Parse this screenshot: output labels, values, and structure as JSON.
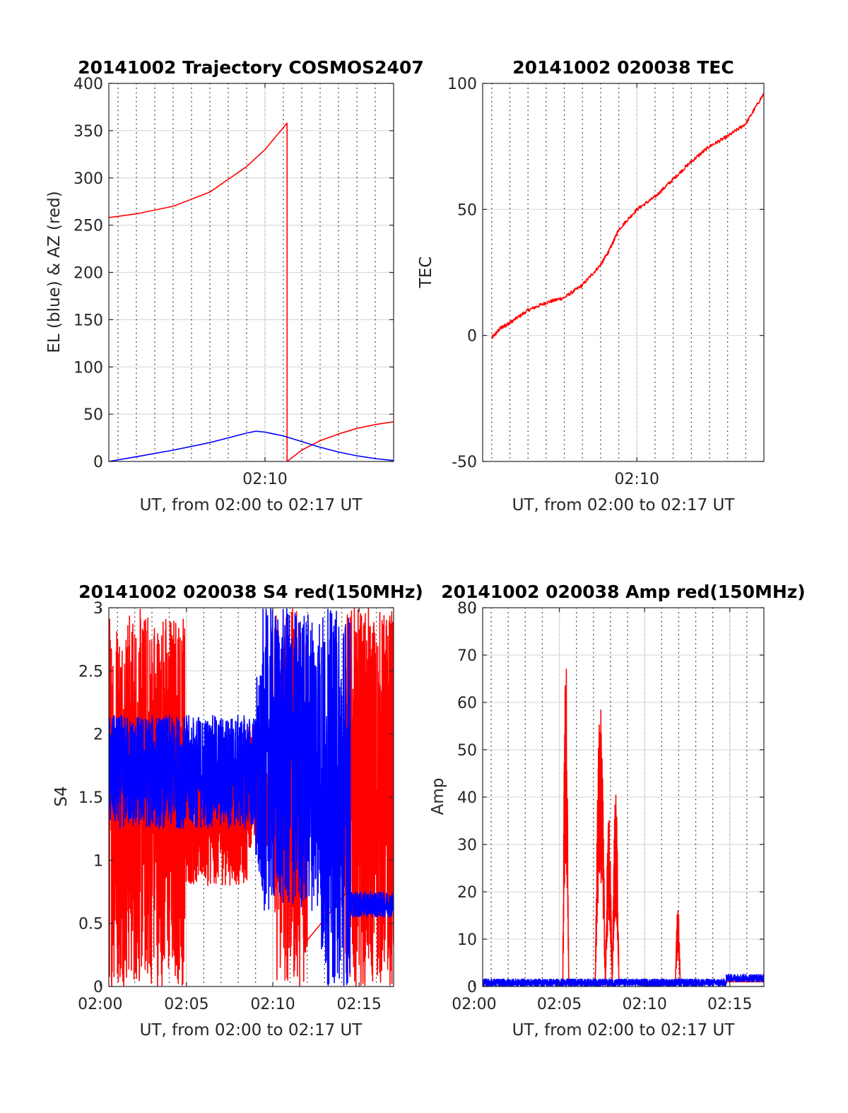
{
  "figure": {
    "colors": {
      "red": "#ff0000",
      "blue": "#0000ff",
      "axis": "#262626",
      "grid": "#dcdcdc",
      "minor_grid": "#000000"
    }
  },
  "chart_data": [
    {
      "id": "trajectory",
      "type": "line",
      "title": "20141002 Trajectory COSMOS2407",
      "xlabel": "UT, from 02:00 to 02:17 UT",
      "ylabel": "EL (blue) & AZ (red)",
      "xlim": [
        1.5,
        17.0
      ],
      "ylim": [
        0,
        400
      ],
      "xticks": [
        {
          "x": 10,
          "label": "02:10"
        }
      ],
      "yticks": [
        0,
        50,
        100,
        150,
        200,
        250,
        300,
        350,
        400
      ],
      "minor_grid_step_min": 1,
      "series": [
        {
          "color": "#ff0000",
          "x": [
            1.5,
            3,
            5,
            7,
            9,
            10,
            11.2,
            11.2,
            11.2,
            12,
            13,
            14,
            15,
            16,
            17
          ],
          "y": [
            258,
            262,
            270,
            285,
            312,
            330,
            358,
            0,
            0,
            12,
            22,
            29,
            35,
            39,
            42
          ]
        },
        {
          "color": "#0000ff",
          "x": [
            1.5,
            3,
            5,
            7,
            8,
            9,
            9.5,
            10,
            11,
            12,
            13,
            14,
            15,
            16,
            17
          ],
          "y": [
            0,
            5,
            12,
            20,
            25,
            30,
            32,
            31,
            27,
            21,
            15,
            10,
            6,
            3,
            1
          ]
        }
      ]
    },
    {
      "id": "tec",
      "type": "line",
      "title": "20141002 020038 TEC",
      "xlabel": "UT, from 02:00 to 02:17 UT",
      "ylabel": "TEC",
      "xlim": [
        1.5,
        17.0
      ],
      "ylim": [
        -50,
        100
      ],
      "xticks": [
        {
          "x": 10,
          "label": "02:10"
        }
      ],
      "yticks": [
        -50,
        0,
        50,
        100
      ],
      "minor_grid_step_min": 1,
      "series": [
        {
          "color": "#ff0000",
          "noise": 0.7,
          "x": [
            2,
            2.5,
            3,
            4,
            5,
            6,
            7,
            8,
            8.5,
            9,
            10,
            11,
            12,
            13,
            14,
            15,
            16,
            17
          ],
          "y": [
            -1,
            3,
            5,
            10,
            13,
            15,
            20,
            28,
            34,
            42,
            50,
            55,
            62,
            69,
            75,
            79,
            84,
            96
          ]
        }
      ]
    },
    {
      "id": "s4",
      "type": "line",
      "title": "20141002 020038 S4 red(150MHz)",
      "xlabel": "UT, from 02:00 to 02:17 UT",
      "ylabel": "S4",
      "xlim": [
        0.5,
        17.0
      ],
      "ylim": [
        0,
        3
      ],
      "xticks": [
        {
          "x": 0,
          "label": "02:00"
        },
        {
          "x": 5,
          "label": "02:05"
        },
        {
          "x": 10,
          "label": "02:10"
        },
        {
          "x": 15,
          "label": "02:15"
        }
      ],
      "yticks": [
        0,
        0.5,
        1,
        1.5,
        2,
        2.5,
        3
      ],
      "minor_grid_step_min": 1,
      "series": [
        {
          "color": "#ff0000",
          "pattern": "noisy",
          "segments": [
            {
              "x0": 0.5,
              "x1": 4.9,
              "low": 0,
              "high": 3,
              "base": 1.5,
              "spread": 1.5
            },
            {
              "x0": 4.9,
              "x1": 8.5,
              "low": 0.6,
              "high": 2.2,
              "base": 1.3,
              "spread": 0.5
            },
            {
              "x0": 8.5,
              "x1": 9.7,
              "low": 1.0,
              "high": 3,
              "base": 1.6,
              "spread": 0.5
            },
            {
              "x0": 10.1,
              "x1": 12.0,
              "low": 0,
              "high": 3,
              "base": 1.5,
              "spread": 1.5
            },
            {
              "x0": 14.2,
              "x1": 17.0,
              "low": 0,
              "high": 3,
              "base": 1.5,
              "spread": 1.5
            }
          ]
        },
        {
          "color": "#0000ff",
          "pattern": "noisy",
          "segments": [
            {
              "x0": 0.5,
              "x1": 9.0,
              "low": 1.0,
              "high": 3,
              "base": 1.7,
              "spread": 0.45
            },
            {
              "x0": 9.0,
              "x1": 9.4,
              "low": 0.6,
              "high": 3,
              "base": 1.6,
              "spread": 0.9
            },
            {
              "x0": 9.4,
              "x1": 12.8,
              "low": 0,
              "high": 3,
              "base": 1.8,
              "spread": 1.2
            },
            {
              "x0": 12.8,
              "x1": 14.5,
              "low": 0,
              "high": 3,
              "base": 1.5,
              "spread": 1.5
            },
            {
              "x0": 14.5,
              "x1": 17.0,
              "low": 0.5,
              "high": 0.9,
              "base": 0.65,
              "spread": 0.1
            }
          ]
        }
      ]
    },
    {
      "id": "amp",
      "type": "line",
      "title": "20141002 020038 Amp red(150MHz)",
      "xlabel": "UT, from 02:00 to 02:17 UT",
      "ylabel": "Amp",
      "xlim": [
        0.5,
        17.0
      ],
      "ylim": [
        0,
        80
      ],
      "xticks": [
        {
          "x": 0,
          "label": "02:00"
        },
        {
          "x": 5,
          "label": "02:05"
        },
        {
          "x": 10,
          "label": "02:10"
        },
        {
          "x": 15,
          "label": "02:15"
        }
      ],
      "yticks": [
        0,
        10,
        20,
        30,
        40,
        50,
        60,
        70,
        80
      ],
      "minor_grid_step_min": 1,
      "series": [
        {
          "color": "#ff0000",
          "pattern": "spikes",
          "spikes": [
            {
              "x0": 5.2,
              "x1": 5.55,
              "peak": 72
            },
            {
              "x0": 7.1,
              "x1": 7.7,
              "peak": 61
            },
            {
              "x0": 7.7,
              "x1": 8.1,
              "peak": 36
            },
            {
              "x0": 8.1,
              "x1": 8.5,
              "peak": 42
            },
            {
              "x0": 11.8,
              "x1": 12.1,
              "peak": 17
            }
          ]
        },
        {
          "color": "#0000ff",
          "pattern": "noisy",
          "segments": [
            {
              "x0": 0.5,
              "x1": 14.8,
              "low": 0,
              "high": 2,
              "base": 0.8,
              "spread": 0.8
            },
            {
              "x0": 14.8,
              "x1": 17.0,
              "low": 0.5,
              "high": 3,
              "base": 1.8,
              "spread": 0.8
            }
          ]
        }
      ]
    }
  ]
}
